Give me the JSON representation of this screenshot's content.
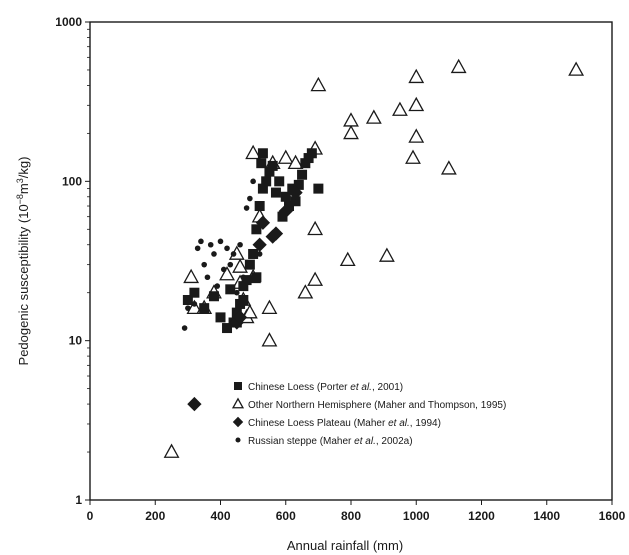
{
  "chart_data": {
    "type": "scatter",
    "title": "",
    "xlabel": "Annual rainfall (mm)",
    "ylabel_main": "Pedogenic susceptibility (10",
    "ylabel_sup1": "−8",
    "ylabel_mid": "m",
    "ylabel_sup2": "3",
    "ylabel_end": "/kg)",
    "xlim": [
      0,
      1600
    ],
    "ylim": [
      1,
      1000
    ],
    "yscale": "log",
    "grid": false,
    "legend_position": "lower-right",
    "x_ticks": [
      0,
      200,
      400,
      600,
      800,
      1000,
      1200,
      1400,
      1600
    ],
    "x_tick_labels": [
      "0",
      "200",
      "400",
      "600",
      "800",
      "1000",
      "1200",
      "1400",
      "1600"
    ],
    "y_ticks": [
      1,
      10,
      100,
      1000
    ],
    "y_tick_labels": [
      "1",
      "10",
      "100",
      "1000"
    ],
    "series": [
      {
        "name_main": "Chinese Loess (Porter ",
        "name_italic": "et al.",
        "name_end": ", 2001)",
        "marker": "square",
        "color": "#1a1a1a",
        "points": [
          [
            300,
            18
          ],
          [
            320,
            20
          ],
          [
            350,
            16
          ],
          [
            380,
            19
          ],
          [
            400,
            14
          ],
          [
            420,
            12
          ],
          [
            430,
            21
          ],
          [
            440,
            13
          ],
          [
            450,
            15
          ],
          [
            460,
            17
          ],
          [
            470,
            22
          ],
          [
            480,
            24
          ],
          [
            490,
            30
          ],
          [
            500,
            35
          ],
          [
            510,
            50
          ],
          [
            520,
            70
          ],
          [
            525,
            130
          ],
          [
            530,
            90
          ],
          [
            540,
            100
          ],
          [
            550,
            115
          ],
          [
            560,
            125
          ],
          [
            570,
            85
          ],
          [
            580,
            100
          ],
          [
            590,
            60
          ],
          [
            600,
            80
          ],
          [
            610,
            70
          ],
          [
            620,
            90
          ],
          [
            630,
            75
          ],
          [
            640,
            95
          ],
          [
            650,
            110
          ],
          [
            660,
            130
          ],
          [
            670,
            140
          ],
          [
            680,
            150
          ],
          [
            700,
            90
          ],
          [
            530,
            150
          ],
          [
            510,
            25
          ],
          [
            470,
            18
          ],
          [
            450,
            13
          ]
        ]
      },
      {
        "name_main": "Other Northern Hemisphere (Maher and Thompson, 1995)",
        "name_italic": "",
        "name_end": "",
        "marker": "triangle",
        "color": "#1a1a1a",
        "points": [
          [
            250,
            2
          ],
          [
            310,
            25
          ],
          [
            320,
            16
          ],
          [
            350,
            16
          ],
          [
            380,
            20
          ],
          [
            420,
            26
          ],
          [
            450,
            35
          ],
          [
            460,
            29
          ],
          [
            460,
            23
          ],
          [
            470,
            18
          ],
          [
            480,
            14
          ],
          [
            490,
            15
          ],
          [
            500,
            25
          ],
          [
            500,
            150
          ],
          [
            520,
            60
          ],
          [
            550,
            10
          ],
          [
            550,
            16
          ],
          [
            560,
            130
          ],
          [
            600,
            140
          ],
          [
            630,
            130
          ],
          [
            660,
            20
          ],
          [
            690,
            24
          ],
          [
            690,
            160
          ],
          [
            690,
            50
          ],
          [
            700,
            400
          ],
          [
            790,
            32
          ],
          [
            800,
            200
          ],
          [
            800,
            240
          ],
          [
            870,
            250
          ],
          [
            910,
            34
          ],
          [
            950,
            280
          ],
          [
            990,
            140
          ],
          [
            1000,
            450
          ],
          [
            1000,
            300
          ],
          [
            1000,
            190
          ],
          [
            1100,
            120
          ],
          [
            1130,
            520
          ],
          [
            1490,
            500
          ]
        ]
      },
      {
        "name_main": "Chinese Loess Plateau (Maher ",
        "name_italic": "et al.",
        "name_end": ", 1994)",
        "marker": "diamond",
        "color": "#1a1a1a",
        "points": [
          [
            320,
            4
          ],
          [
            450,
            13
          ],
          [
            460,
            14
          ],
          [
            520,
            40
          ],
          [
            530,
            55
          ],
          [
            560,
            45
          ],
          [
            570,
            47
          ],
          [
            600,
            65
          ],
          [
            630,
            85
          ]
        ]
      },
      {
        "name_main": "Russian steppe (Maher ",
        "name_italic": "et al.",
        "name_end": ", 2002a)",
        "marker": "circle",
        "color": "#1a1a1a",
        "points": [
          [
            290,
            12
          ],
          [
            300,
            16
          ],
          [
            320,
            17
          ],
          [
            330,
            38
          ],
          [
            340,
            42
          ],
          [
            350,
            30
          ],
          [
            360,
            25
          ],
          [
            370,
            40
          ],
          [
            380,
            35
          ],
          [
            390,
            22
          ],
          [
            400,
            42
          ],
          [
            410,
            28
          ],
          [
            420,
            38
          ],
          [
            430,
            30
          ],
          [
            440,
            35
          ],
          [
            450,
            20
          ],
          [
            460,
            40
          ],
          [
            470,
            25
          ],
          [
            480,
            68
          ],
          [
            490,
            78
          ],
          [
            500,
            100
          ],
          [
            510,
            50
          ],
          [
            520,
            35
          ]
        ]
      }
    ]
  }
}
